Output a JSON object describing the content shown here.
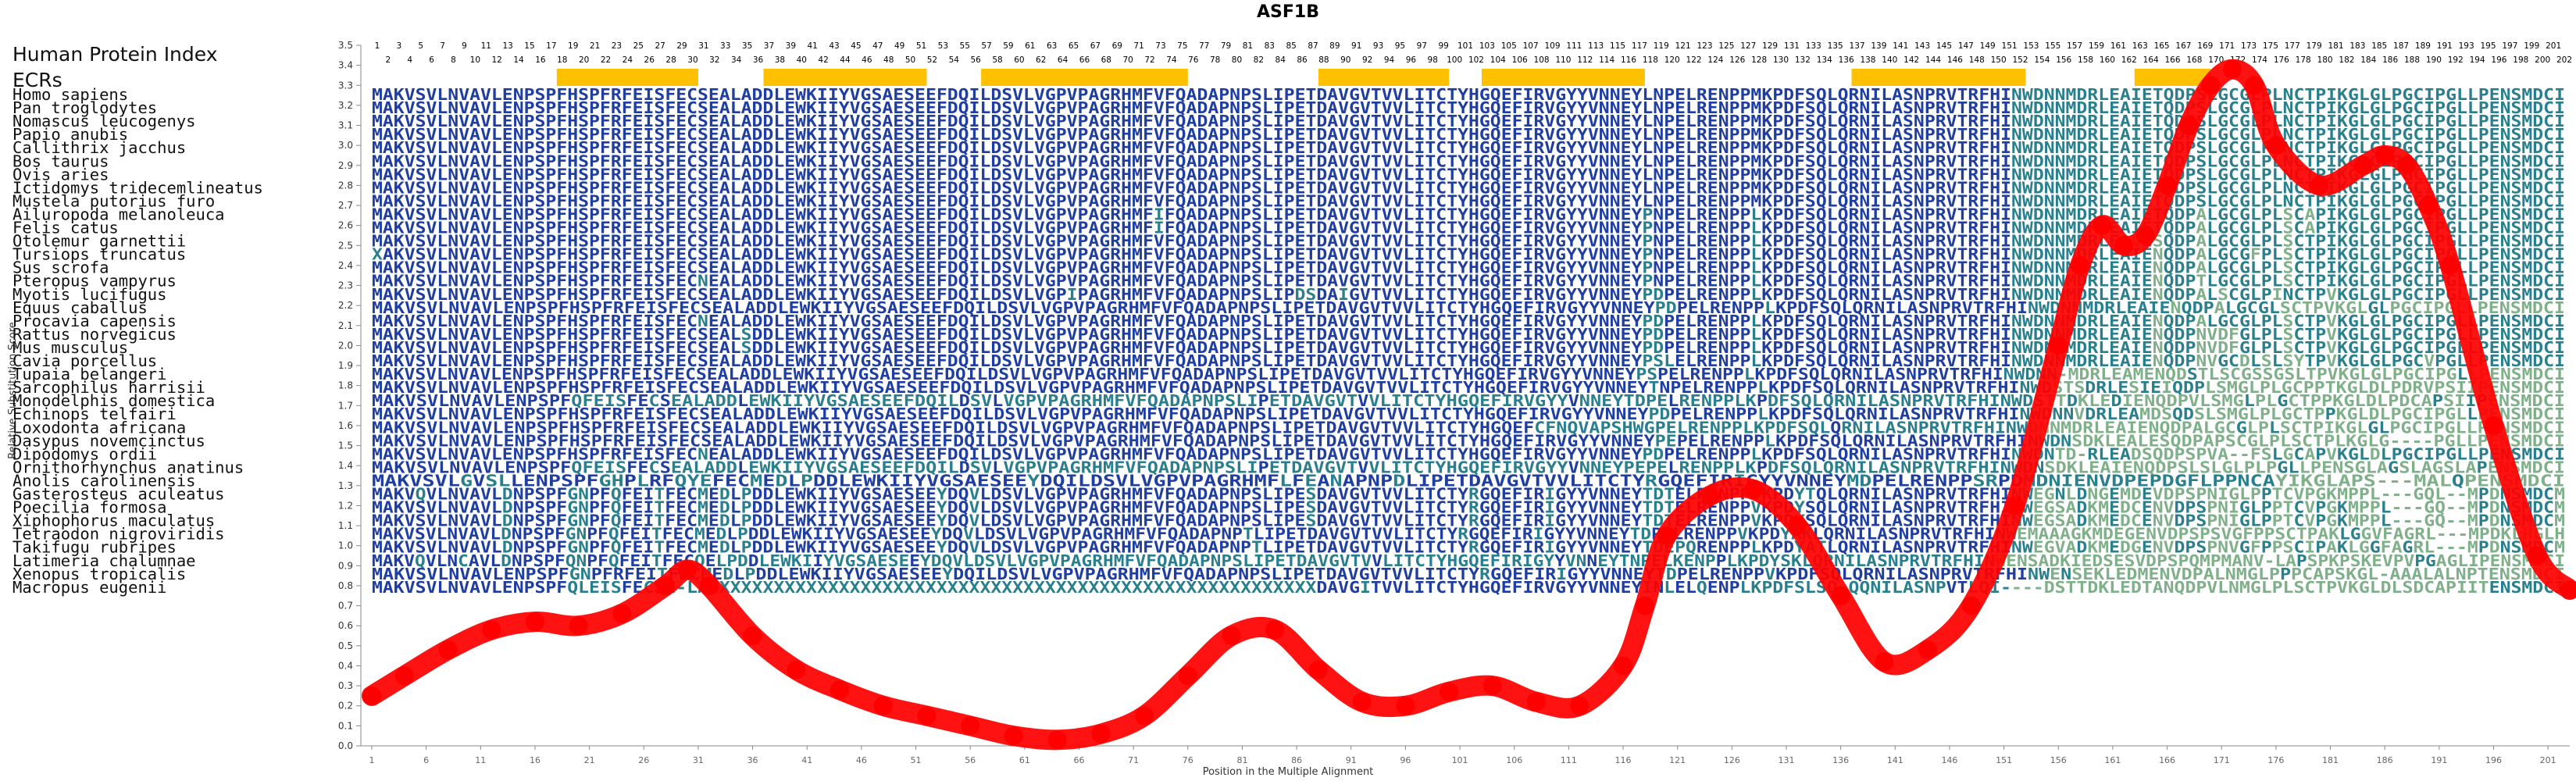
{
  "chart_data": {
    "type": "line",
    "title": "ASF1B",
    "xlabel": "Position in the Multiple Alignment",
    "ylabel": "Relative Substitution Score",
    "ylim": [
      0,
      3.5
    ],
    "xlim": [
      1,
      203
    ],
    "yticks": [
      "0.0",
      "0.1",
      "0.2",
      "0.3",
      "0.4",
      "0.5",
      "0.6",
      "0.7",
      "0.8",
      "0.9",
      "1.0",
      "1.1",
      "1.2",
      "1.3",
      "1.4",
      "1.5",
      "1.6",
      "1.7",
      "1.8",
      "1.9",
      "2.0",
      "2.1",
      "2.2",
      "2.3",
      "2.4",
      "2.5",
      "2.6",
      "2.7",
      "2.8",
      "2.9",
      "3.0",
      "3.1",
      "3.2",
      "3.3",
      "3.4",
      "3.5"
    ],
    "xticks": [
      1,
      6,
      11,
      16,
      21,
      26,
      31,
      36,
      41,
      46,
      51,
      56,
      61,
      66,
      71,
      76,
      81,
      86,
      91,
      96,
      101,
      106,
      111,
      116,
      121,
      126,
      131,
      136,
      141,
      146,
      151,
      156,
      161,
      166,
      171,
      176,
      181,
      186,
      191,
      196,
      201
    ],
    "series": [
      {
        "color": "#ff0000",
        "x": [
          1,
          4,
          8,
          12,
          16,
          20,
          24,
          28,
          30,
          32,
          36,
          40,
          44,
          48,
          52,
          56,
          60,
          64,
          68,
          72,
          76,
          80,
          84,
          88,
          92,
          96,
          100,
          104,
          108,
          112,
          116,
          118,
          120,
          124,
          128,
          132,
          136,
          140,
          144,
          148,
          152,
          156,
          158,
          160,
          162,
          164,
          166,
          168,
          170,
          172,
          174,
          176,
          180,
          184,
          186,
          188,
          190,
          192,
          196,
          200,
          203
        ],
        "y": [
          0.25,
          0.35,
          0.48,
          0.58,
          0.62,
          0.6,
          0.66,
          0.8,
          0.88,
          0.8,
          0.55,
          0.38,
          0.28,
          0.2,
          0.15,
          0.1,
          0.05,
          0.03,
          0.06,
          0.15,
          0.35,
          0.55,
          0.58,
          0.38,
          0.22,
          0.2,
          0.27,
          0.3,
          0.22,
          0.2,
          0.4,
          0.7,
          1.05,
          1.25,
          1.28,
          1.1,
          0.75,
          0.42,
          0.48,
          0.7,
          1.2,
          2.0,
          2.4,
          2.6,
          2.5,
          2.55,
          2.8,
          3.1,
          3.3,
          3.38,
          3.3,
          3.0,
          2.8,
          2.9,
          2.95,
          2.9,
          2.7,
          2.4,
          1.6,
          0.95,
          0.78
        ]
      }
    ],
    "grid": false,
    "legend": "none"
  },
  "panel": {
    "hpi_label": "Human Protein Index",
    "ecr_label": "ECRs",
    "hpi_numbers": [
      1,
      2,
      3,
      4,
      5,
      6,
      7,
      8,
      9,
      10,
      11,
      12,
      13,
      14,
      15,
      16,
      17,
      18,
      19,
      20,
      21,
      22,
      23,
      24,
      25,
      26,
      27,
      28,
      29,
      30,
      31,
      32,
      33,
      34,
      35,
      36,
      37,
      38,
      39,
      40,
      41,
      42,
      43,
      44,
      45,
      46,
      47,
      48,
      49,
      50,
      51,
      52,
      53,
      54,
      55,
      56,
      57,
      58,
      59,
      60,
      61,
      62,
      63,
      64,
      65,
      66,
      67,
      68,
      69,
      70,
      71,
      72,
      73,
      74,
      75,
      76,
      77,
      78,
      79,
      80,
      81,
      82,
      83,
      84,
      85,
      86,
      87,
      88,
      89,
      90,
      91,
      92,
      93,
      94,
      95,
      96,
      97,
      98,
      99,
      100,
      101,
      102,
      103,
      104,
      105,
      106,
      107,
      108,
      109,
      110,
      111,
      112,
      113,
      114,
      115,
      116,
      117,
      118,
      119,
      120,
      121,
      122,
      123,
      124,
      125,
      126,
      127,
      128,
      129,
      130,
      131,
      132,
      133,
      134,
      135,
      136,
      137,
      138,
      139,
      140,
      141,
      142,
      143,
      144,
      145,
      146,
      147,
      148,
      149,
      150,
      151,
      152,
      153,
      154,
      155,
      156,
      157,
      158,
      159,
      160,
      161,
      162,
      163,
      164,
      165,
      166,
      167,
      168,
      169,
      170,
      171,
      172,
      173,
      174,
      175,
      176,
      177,
      178,
      179,
      180,
      181,
      182,
      183,
      184,
      185,
      186,
      187,
      188,
      189,
      190,
      191,
      192,
      193,
      194,
      195,
      196,
      197,
      198,
      199,
      200,
      201,
      202
    ],
    "ecr_color": "#ffc000",
    "ecr_ranges": [
      [
        18,
        30
      ],
      [
        37,
        51
      ],
      [
        57,
        75
      ],
      [
        88,
        99
      ],
      [
        103,
        117
      ],
      [
        137,
        152
      ],
      [
        163,
        169
      ]
    ],
    "colors": {
      "conserved": "#1f3ea0",
      "variable": "#2a7f8c",
      "divergent": "#7fb08a"
    },
    "alignment": [
      {
        "species": "Homo sapiens",
        "seq": "MAKVSVLNVAVLENPSPFHSPFRFEISFECSEALADDLEWKIIYVGSAESEEFDQILDSVLVGPVPAGRHMFVFQADAPNPSLIPETDAVGVTVVLITCTYHGQEFIRVGYYVNNEYLNPELRENPPMKPDFSQLQRNILASNPRVTRFHINWDNNMDRLEAIETQDPSLGCGLPLNCTPIKGLGLPGCIPGLLPENSMDCI"
      },
      {
        "species": "Pan troglodytes",
        "seq": "MAKVSVLNVAVLENPSPFHSPFRFEISFECSEALADDLEWKIIYVGSAESEEFDQILDSVLVGPVPAGRHMFVFQADAPNPSLIPETDAVGVTVVLITCTYHGQEFIRVGYYVNNEYLNPELRENPPMKPDFSQLQRNILASNPRVTRFHINWDNNMDRLEAIETQDPSLGCGLPLNCTPIKGLGLPGCIPGLLPENSMDCI"
      },
      {
        "species": "Nomascus leucogenys",
        "seq": "MAKVSVLNVAVLENPSPFHSPFRFEISFECSEALADDLEWKIIYVGSAESEEFDQILDSVLVGPVPAGRHMFVFQADAPNPSLIPETDAVGVTVVLITCTYHGQEFIRVGYYVNNEYLNPELRENPPMKPDFSQLQRNILASNPRVTRFHINWDNNMDRLEAIETQDPSLGCGLPLNCTPIKGLGLPGCIPGLLPENSMDCI"
      },
      {
        "species": "Papio anubis",
        "seq": "MAKVSVLNVAVLENPSPFHSPFRFEISFECSEALADDLEWKIIYVGSAESEEFDQILDSVLVGPVPAGRHMFVFQADAPNPSLIPETDAVGVTVVLITCTYHGQEFIRVGYYVNNEYLNPELRENPPMKPDFSQLQRNILASNPRVTRFHINWDNNMDRLEAIETQDPSLGCGLPLNCTPIKGLGLPGCIPGLLPENSMDCI"
      },
      {
        "species": "Callithrix jacchus",
        "seq": "MAKVSVLNVAVLENPSPFHSPFRFEISFECSEALADDLEWKIIYVGSAESEEFDQILDSVLVGPVPAGRHMFVFQADAPNPSLIPETDAVGVTVVLITCTYHGQEFIRVGYYVNNEYLNPELRENPPMKPDFSQLQRNILASNPRVTRFHINWDNNMDRLEAIETQDPSLGCGLPLNCTPIKGLGLPGCIPGLLPENSMDCI"
      },
      {
        "species": "Bos taurus",
        "seq": "MAKVSVLNVAVLENPSPFHSPFRFEISFECSEALADDLEWKIIYVGSAESEEFDQILDSVLVGPVPAGRHMFVFQADAPNPSLIPETDAVGVTVVLITCTYHGQEFIRVGYYVNNEYLNPELRENPPMKPDFSQLQRNILASNPRVTRFHINWDNNMDRLEAIETQDPSLGCGLPLNCTPIKGLGLPGCIPGLLPENSMDCI"
      },
      {
        "species": "Ovis aries",
        "seq": "MAKVSVLNVAVLENPSPFHSPFRFEISFECSEALADDLEWKIIYVGSAESEEFDQILDSVLVGPVPAGRHMFVFQADAPNPSLIPETDAVGVTVVLITCTYHGQEFIRVGYYVNNEYLNPELRENPPMKPDFSQLQRNILASNPRVTRFHINWDNNMDRLEAIETQDPSLGCGLPLNCTPIKGLGLPGCIPGLLPENSMDCI"
      },
      {
        "species": "Ictidomys tridecemlineatus",
        "seq": "MAKVSVLNVAVLENPSPFHSPFRFEISFECSEALADDLEWKIIYVGSAESEEFDQILDSVLVGPVPAGRHMFVFQADAPNPSLIPETDAVGVTVVLITCTYHGQEFIRVGYYVNNEYLNPELRENPPMKPDFSQLQRNILASNPRVTRFHINWDNNMDRLEAIETQDPSLGCGLPLNCTPIKGLGLPGCIPGLLPENSMDCI"
      },
      {
        "species": "Mustela putorius furo",
        "seq": "MAKVSVLNVAVLENPSPFHSPFRFEISFECSEALADDLEWKIIYVGSAESEEFDQILDSVLVGPVPAGRHMFVFQADAPNPSLIPETDAVGVTVVLITCTYHGQEFIRVGYYVNNEYLNPELRENPPMKPDFSQLQRNILASNPRVTRFHINWDNNMDRLEAIETQDPSLGCGLPLNCTPIKGLGLPGCIPGLLPENSMDCI"
      },
      {
        "species": "Ailuropoda melanoleuca",
        "seq": "MAKVSVLNVAVLENPSPFHSPFRFEISFECSEALADDLEWKIIYVGSAESEEFDQILDSVLVGPVPAGRHMFIFQADAPNPSLIPETDAVGVTVVLITCTYHGQEFIRVGYYVNNEYPNPELRENPPLKPDFSQLQRNILASNPRVTRFHINWDNNMDRLEAIETQDPALGCGLPLSCAPIKGLGLPGCIPGLLPENSMDCI"
      },
      {
        "species": "Felis catus",
        "seq": "MAKVSVLNVAVLENPSPFHSPFRFEISFECSEALADDLEWKIIYVGSAESEEFDQILDSVLVGPVPAGRHMFIFQADAPNPSLIPETDAVGVTVVLITCTYHGQEFIRVGYYVNNEYPNPELRENPPLKPDFSQLQRNILASNPRVTRFHINWDNNMDRLEAIETQDPALGCGLPLSCAPIKGLGLPGCIPGLLPENSMDCI"
      },
      {
        "species": "Otolemur garnettii",
        "seq": "MAKVSVLNVAVLENPSPFHSPFRFEISFECSEALADDLEWKIIYVGSAESEEFDQILDSVLVGPVPAGRHMFVFQADAPNPSLIPETDAVGVTVVLITCTYHGQEFIRVGYYVNNEYPNPELRENPPLKPDFSQLQRNILASNPRVTRFHINWDNNMDRLEAVESQDPALGCGLPLSCTPIKGLGLPGCIPGLLPENSMDCI"
      },
      {
        "species": "Tursiops truncatus",
        "seq": "XAKVSVLNVAVLENPSPFHSPFRFEISFECSEALADDLEWKIIYVGSAESEEFDQILDSVLVGPVPAGRHMFVFQADAPNPSLIPETDAVGVTVVLITCTYHGQEFIRVGYYVNNEYPNPELRENPPLKPDFSQLQRNILASNPRVTRFHINWDNNMDRLEAIENQDPALGCGFPLSCTPIKGLGLPGCIPGLLPENSMDCI"
      },
      {
        "species": "Sus scrofa",
        "seq": "MAKVSVLNVAVLENPSPFHSPFRFEISFECSEALADDLEWKIIYVGSAESEEFDQILDSVLVGPVPAGRHMFVFQADAPNPSLIPETDAVGVTVVLITCTYHGQEFIRVGYYVNNEYPNPELRENPPLKPDFSQLQRNILASNPRVTRFHINWDNNMDRLEAIENQDPALGCGLPLSCTPIKGLGLPGCIPGLLPENSMDCI"
      },
      {
        "species": "Pteropus vampyrus",
        "seq": "MAKVSVLNVAVLENPSPFHSPFRFEISFECNEALADDLEWKIIYVGSAESEEFDQILDSVLVGPVPAGRHMFVFQADAPNPSLIPETDAVGVTVVLITCTYHGQEFIRVGYYVNNEYPNPELRENPPLKPDFSQLQRNILASNPRVTRFHINWDNNMDRLEAIENQDPTLGCGLPLSCTPIKGLGLPGCIPGLLPENSMDCI"
      },
      {
        "species": "Myotis lucifugus",
        "seq": "MAKVSVLNVAVLENPSPFHSPFRFEISFECSEALADDLEWKIIYVGSAESEEFDQILDSVLVGPIPAGRHMFVFQADAPNPSLIPDSDAIGVTVVLITCTYHGQEFIRVGYYVNNEYPDPELRENPPLKPDFSQLQRNILASNPRVTRFHINWDNNMDRLEAIENQDPALSCGLPINCTPVKGLGLPGCIPGLLPENSMDCI"
      },
      {
        "species": "Equus caballus",
        "seq": "MAKVSVLNVAVLENPSPFHSPFRFEISFECSEALADDLEWKIIYVGSAESEEFDQILDSVLVGPVPAGRHMFVFQADAPNPSLIPETDAVGVTVVLITCTYHGQEFIRVGYYVNNEYPDPELRENPPLKPDFSQLQRNILASNPRVTRFHINWDNNMDRLEAIENQDPALGCGLSCTPVKGLGLPGCIPGLLPENSMDCI"
      },
      {
        "species": "Procavia capensis",
        "seq": "MAKVSVLNVAVLENPSPFHSPFRFEISFECNEALADDLEWKIIYVGSAESEEFDQILDSVLVGPVPAGRHMFVFQADAPNPSLIPETDAVGVTVVLITCTYHGQEFIRVGYYVNNEYPDPELRENPPLKPDFSQLQRNILASNPRVTRFHINWDNNMDRLEAIENQDPALGCGLPLSCTPVKGLGLPGCIPGLLPENSMDCI"
      },
      {
        "species": "Rattus norvegicus",
        "seq": "MAKVSVLNVAVLENPSPFHSPFRFEISFECSEALSDDLEWKIIYVGSAESEEFDQILDSVLVGPVPAGRHMFVFQADAPNPSLIPETDAVGVTVVLITCTYHGQEFIRVGYYVNNEYPDPELRENPPLKPDFSQLQRNILASNPRVTRFHINWDNNMDRLEAIENQDPNVDFGLPLSCTPVKGLGLPGCIPGLLPENSMDCI"
      },
      {
        "species": "Mus musculus",
        "seq": "MAKVSVLNVAVLENPSPFHSPFRFEISFECSEALSDDLEWKIIYVGSAESEEFDQILDSVLVGPVPAGRHMFVFQADAPNPSLIPETDAVGVTVVLITCTYHGQEFIRVGYYVNNEYPDPELRENPPLKPDFSQLQRNILASNPRVTRFHINWDNNMDRLEAIENQDPNVDFGLPLSCTPVKGLGLPGCIPGLLPENSMDCI"
      },
      {
        "species": "Cavia porcellus",
        "seq": "MAKVSVLNVAVLENPSPFHSPFRFEISFECSEALADDLEWKIIYVGSAESEEFDQILDSVLVGPVPAGRHMFVFQADAPNPSLIPETDAVGVTVVLITCTYHGQEFIRVGYYVNNEYPSLELRENPPLKPDFSQLQRNILASNPRVTRFHINWDNNMDRLEAIENQDPNVGCDLSLSYTPVKGLGLPGCVPGLLPENSMDCI"
      },
      {
        "species": "Tupaia belangeri",
        "seq": "MAKVSVLNVAVLENPSPFHSPFRFEISFECSEALADDLEWKIIYVGSAESEEFDQILDSVLVGPVPAGRHMFVFQADAPNPSLIPETDAVGVTVVLITCTYHGQEFIRVGYYVNNEYPSPELRENPPLKPDFSQLQRNILASNPRVTRFHINWDNN-MDRLEAMENQDSTLSCGSSGSLTPVKGLGLPGCIPGLLPENSMDCI"
      },
      {
        "species": "Sarcophilus harrisii",
        "seq": "MAKVSVLNVAVLENPSPFHSPFRFEISFECSEALADDLEWKIIYVGSAESEEFDQILDSVLVGPVPAGRHMFVFQADAPNPSLIPETDAVGVTVVLITCTYHGQEFIRVGYYVNNEYTNPELRENPPLKPDFSQLQRNILASNPRVTRFHINWDSTSDRLESIEIQDPLSMGLPLGCPPTKGLDLPDRVPSIIPENSMDCI"
      },
      {
        "species": "Monodelphis domestica",
        "seq": "MAKVSVLNVAVLENPSPFQFEISFECSEALADDLEWKIIYVGSAESEEFDQILDSVLVGPVPAGRHMFVFQADAPNPSLIPETDAVGVTVVLITCTYHGQEFIRVGYYVNNEYTDPELRENPPLKPDFSQLQRNILASNPRVTRFHINWDSTTDKLEDIENQDPVLSMGLPLGCTPPKGLDLPDCAPSIIPENSMDCI"
      },
      {
        "species": "Echinops telfairi",
        "seq": "MAKVSVLNVAVLENPSPFHSPFRFEISFECSEALADDLEWKIIYVGSAESEEFDQILDSVLVGPVPAGRHMFVFQADAPNPSLIPETDAVGVTVVLITCTYHGQEFIRVGYYVNNEYPDPELRENPPLKPDFSQLQRNILASNPRVTRFHINWDNNVDRLEAMDSQDSLSMGLPLGCTPPKGLDLPGCIPGLLPENSMDCI"
      },
      {
        "species": "Loxodonta africana",
        "seq": "MAKVSVLNVAVLENPSPFHSPFRFEISFECSEALADDLEWKIIYVGSAESEEFDQILDSVLVGPVPAGRHMFVFQADAPNPSLIPETDAVGVTVVLITCTYHGQEFCFNQVAPSHWGPELRENPPLKPDFSQLQRNILASNPRVTRFHINWDNNMDRLEAIENQDPALGCGLPLSCTPIKGLGLPGCIPGLLPENSMDCI"
      },
      {
        "species": "Dasypus novemcinctus",
        "seq": "MAKVSVLNVAVLENPSPFHSPFRFEISFECSEALADDLEWKIIYVGSAESEEFDQILDSVLVGPVPAGRHMFVFQADAPNPSLIPETDAVGVTVVLITCTYHGQEFIRVGYYVNNEYPEPELRENPPLKPDFSQLQRNILASNPRVTRFHINWDNSDKLEALESQDPAPSCGLPLSCTPLKGLG----PGLLPENSMDCI"
      },
      {
        "species": "Dipodomys ordii",
        "seq": "MAKVSVLNVAVLENPSPFHSPFRFEISFECNEALADDLEWKIIYVGSAESEEFDQILDSVLVGPVPAGRHMFVFQADAPNPSLIPETDAVGVTVVLITCTYHGQEFIRVGYYVNNEYPDPELRENPPLKPDFSQLQRNILASNPRVTRFHINWDNTD-RLEADSQDPSPVA--FSLGCAPVKGLDLPGCIPGLLPENSMDCI"
      },
      {
        "species": "Ornithorhynchus anatinus",
        "seq": "MAKVSVLNVAVLENPSPFQFEISFECSEALADDLEWKIIYVGSAESEEFDQILDSVLVGPVPAGRHMFVFQADAPNPSLIPETDAVGVTVVLITCTYHGQEFIRVGYYVNNEYPEPELRENPPLKPDFSQLQRNILASNPRVTRFHINWDNSDKLEAIENQDPSLSLGLPLPGLLPENSGLAGSLAGSLAPENSMDCI"
      },
      {
        "species": "Anolis carolinensis",
        "seq": "MAKVSVLGVSLLENPSPFGHPLRFQYEFECMEDLPDDLEWKIIYVGSAESEEYDQILDSVLVGPVPAGRHMFLFEANAPNPDLIPETDAVGVTVVLITCTYRGQEFIRIGYYVNNEYMDPELRENPPSRPDMDNIENVDPEPDGFLPPNCAYIKGLAPS---MALQPENSMDCI"
      },
      {
        "species": "Gasterosteus aculeatus",
        "seq": "MAKVQVLNVAVLDNPSPFGNPFQFEITFECMEDLPDDLEWKIIYVGSAESEEYDQVLDSVLVGPVPAGRHMFVFQADAPNPSLIPESDAVGVTVVLITCTYRGQEFIRIGYYVNNEYTDTELRENPPVKPDYTQLQRNILASNPRVTRFHINWEGNLDNGEMDEVDPSPNIGLPPTCVPGKMPPL---GQL--MPDNSMDCM"
      },
      {
        "species": "Poecilia formosa",
        "seq": "MAKVSVLNVAVLDNPSPFGNPFQFEITFECMEDLPDDLEWKIIYVGSAESEEYDQVLDSVLVGPVPAGRHMFVFQADAPNPSLIPESDAVGVTVVLITCTYRGQEFIRIGYYVNNEYTDTELRENPPVKPDYSQLQRNILASNPRVTRFHINWEGSADKMEDCENVDPSPNIGLPPTCVPGKMPPL---GQ--MPDNSMDCM"
      },
      {
        "species": "Xiphophorus maculatus",
        "seq": "MAKVSVLNVAVLDNPSPFGNPFQFEITFECMEDLPDDLEWKIIYVGSAESEEYDQVLDSVLVGPVPAGRHMFVFQADAPNPSLIPESDAVGVTVVLITCTYRGQEFIRIGYYVNNEYTDTELRENPPVKPDYSQLQRNILASNPRVTRFHINWEGSADKMEDCENVDPSPNIGLPPTCVPGKMPPL---GQ--MPDNSMDCM"
      },
      {
        "species": "Tetraodon nigroviridis",
        "seq": "MAKVSVLNVAVLDNPSPFGNPFQFEITFECMEDLPDDLEWKIIYVGSAESEEYDQVLDSVLVGPVPAGRHMFVFQADAPNPTLIPETDAVGVTVVLITCTYRGQEFIRIGYYVNNEYTDPELRENPPVKPDYAKLQRNILASNPRVTRFHINWEMAAAGKMDEGENVDPSPSVGFPPSCTPAKLGGVFAGRL---MPDKLHGLH"
      },
      {
        "species": "Takifugu rubripes",
        "seq": "MAKVSVLNVAVLDNPSPFGNPFQFEITFECMEDLPDDLEWKIIYVGSAESEEYDQVLDSVLVGPVPAGRHMFVFQADAPNPTLIPETDAVGVTVVLITCTYRGQEFIRIGYYVNNEYTDEPQRENPPLKPDYATLQRNILASNPRVTRFHINWEGVADKMEDGENVDPSPNVGFPPSCIPAKLGGFAGRL---MPDNSMDCM"
      },
      {
        "species": "Latimeria chalumnae",
        "seq": "MAKVQVLNCAVLDNPSPFQNPFQFEITFECQELPDDLEWKIIYVGSAESEEYDQVLDSVLVGPVPAGRHMFVFQADAPNPSLIPETDAVGVTVVLITCTYHGQEFIRIGYYVNNEYTNPELKENPPLKPDYSKLQRNILASNPRVTRFHINWENSADKIEDSESVDPSPQMPMANV-LAPSPKPSKEVPVPGAGLIPENSMDCI"
      },
      {
        "species": "Xenopus tropicalis",
        "seq": "MAKVSVLNVAVLENPSPFGNPFRFEITFECMEDLPDDLEWKIIYVGSAESEEYDQILDSVLVGPVPAGRHMFVFQADAPNPSLIPETDAVGVTVVLITCTYRGQEFIRIGYYVNNEYTDPELRENPPVKPDFSQLQRNILASNPRVTRFHINWENSEKLEDMENVDPALNMGLPPPCAPSKGL-AAALALNPTENSMDCI"
      },
      {
        "species": "Macropus eugenii",
        "seq": "MAKVSVLNVAVLENPSPFQLEISFECSE-LADXXXXXXXXXXXXXXXXXXXXXXXXXXXXXXXXXXXXXXXXXXXXXXXXXXXXXXXDAVGITVVLITCTYHGQEFIRVGYYVNNEYINLELQENPLKPDFSLSQ-QQNILASNPVTLQI----DSTTDKLEDTANQDPVLNMGLPLSCTPVKGLDLSDCAPIITENSMDCI"
      }
    ]
  }
}
